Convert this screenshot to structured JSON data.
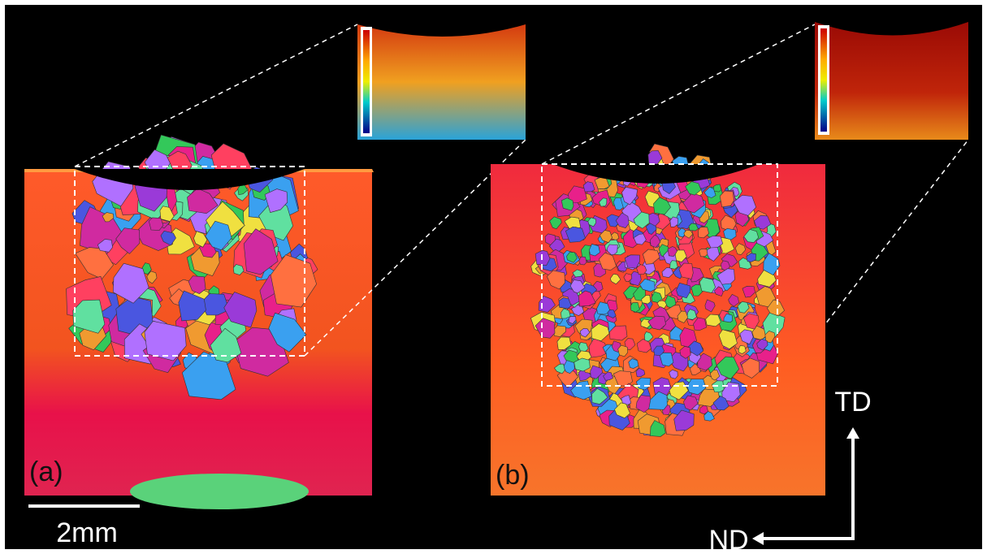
{
  "panels": [
    {
      "label": "(a)"
    },
    {
      "label": "(b)"
    }
  ],
  "scale_bar": {
    "label": "2mm"
  },
  "axes": {
    "vertical": "TD",
    "horizontal": "ND"
  }
}
